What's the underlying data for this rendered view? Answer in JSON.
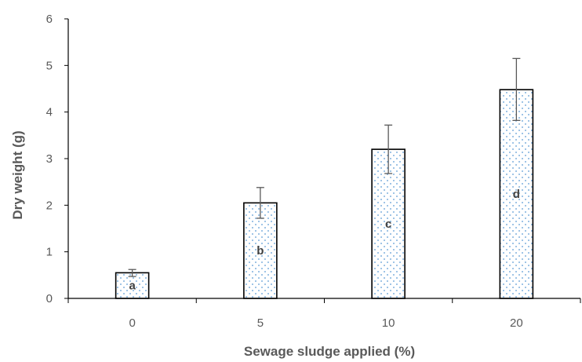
{
  "chart_data": {
    "type": "bar",
    "title": "",
    "xlabel": "Sewage sludge applied (%)",
    "ylabel": "Dry weight (g)",
    "ylim": [
      0,
      6
    ],
    "yticks": [
      "0",
      "1",
      "2",
      "3",
      "4",
      "5",
      "6"
    ],
    "categories": [
      "0",
      "5",
      "10",
      "20"
    ],
    "values": [
      0.55,
      2.05,
      3.2,
      4.48
    ],
    "error_low": [
      0.47,
      1.72,
      2.68,
      3.82
    ],
    "error_high": [
      0.62,
      2.38,
      3.72,
      5.15
    ],
    "significance_letters": [
      "a",
      "b",
      "c",
      "d"
    ],
    "grid": false,
    "legend": "none",
    "bar_fill": "dotted pattern",
    "colors": {
      "bar_border": "#000000",
      "dot": "#5b9bd5",
      "error_bar": "#595959",
      "axis": "#000000",
      "text": "#595959"
    }
  }
}
